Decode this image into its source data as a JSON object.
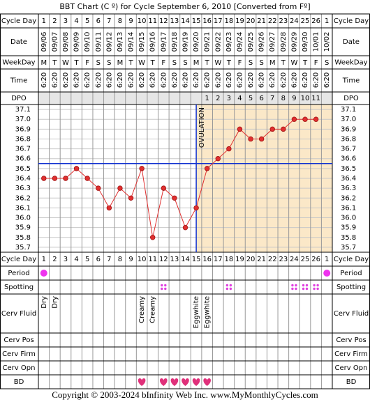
{
  "title": "BBT Chart (C º) for Cycle September 6, 2010  [Converted from Fº]",
  "row_labels": [
    "Cycle Day",
    "Date",
    "WeekDay",
    "Time",
    "DPO",
    "Cycle Day",
    "Period",
    "Spotting",
    "Cerv Fluid",
    "Cerv Pos",
    "Cerv Firm",
    "Cerv Opn",
    "BD"
  ],
  "cycle_days": [
    1,
    2,
    3,
    4,
    5,
    6,
    7,
    8,
    9,
    10,
    11,
    12,
    13,
    14,
    15,
    16,
    17,
    18,
    19,
    20,
    21,
    22,
    23,
    24,
    25,
    26,
    1
  ],
  "weekdays": [
    "M",
    "T",
    "W",
    "T",
    "F",
    "S",
    "S",
    "M",
    "T",
    "W",
    "T",
    "F",
    "S",
    "S",
    "M",
    "T",
    "W",
    "T",
    "F",
    "S",
    "S",
    "M",
    "T",
    "W",
    "T",
    "F",
    "S"
  ],
  "times": [
    "6:20",
    "6:20",
    "6:20",
    "6:20",
    "6:20",
    "6:20",
    "6:20",
    "6:20",
    "6:20",
    "6:20",
    "6:20",
    "6:20",
    "6:20",
    "6:20",
    "6:20",
    "6:20",
    "6:20",
    "6:20",
    "6:20",
    "6:20",
    "6:20",
    "6:20",
    "6:20",
    "6:20",
    "6:20",
    "6:20",
    "6:20"
  ],
  "dpo": [
    null,
    null,
    null,
    null,
    null,
    null,
    null,
    null,
    null,
    null,
    null,
    null,
    null,
    null,
    null,
    1,
    2,
    3,
    4,
    5,
    6,
    7,
    8,
    9,
    10,
    11,
    null
  ],
  "chart_data": {
    "type": "line",
    "x": [
      "09/06",
      "09/07",
      "09/08",
      "09/09",
      "09/10",
      "09/11",
      "09/12",
      "09/13",
      "09/14",
      "09/15",
      "09/16",
      "09/17",
      "09/18",
      "09/19",
      "09/20",
      "09/21",
      "09/22",
      "09/23",
      "09/24",
      "09/25",
      "09/26",
      "09/27",
      "09/28",
      "09/29",
      "09/30",
      "10/01",
      "10/02"
    ],
    "values": [
      36.4,
      36.4,
      36.4,
      36.5,
      36.4,
      36.3,
      36.1,
      36.3,
      36.2,
      36.5,
      35.8,
      36.3,
      36.2,
      35.9,
      36.1,
      36.5,
      36.6,
      36.7,
      36.9,
      36.8,
      36.8,
      36.9,
      36.9,
      37.0,
      37.0,
      37.0,
      null
    ],
    "color": "#e03030",
    "ylim": [
      35.65,
      37.15
    ],
    "yticks": [
      37.1,
      {
        "value": 37.0,
        "label": "37.0"
      },
      36.9,
      36.8,
      36.7,
      36.6,
      36.5,
      36.4,
      36.3,
      36.2,
      36.1,
      {
        "value": 36.0,
        "label": "36.0"
      },
      35.9,
      35.8,
      35.7
    ],
    "grid": true,
    "coverline": 36.55,
    "ovulation_day": 15,
    "ovulation_label": "OVULATION"
  },
  "period": [
    true,
    false,
    false,
    false,
    false,
    false,
    false,
    false,
    false,
    false,
    false,
    false,
    false,
    false,
    false,
    false,
    false,
    false,
    false,
    false,
    false,
    false,
    false,
    false,
    false,
    false,
    true
  ],
  "spotting": [
    false,
    false,
    false,
    false,
    false,
    false,
    false,
    false,
    false,
    false,
    false,
    true,
    false,
    false,
    false,
    false,
    false,
    true,
    false,
    false,
    false,
    false,
    false,
    true,
    true,
    true,
    false
  ],
  "cerv_fluid": [
    "Dry",
    "Dry",
    null,
    null,
    null,
    null,
    null,
    null,
    null,
    "Creamy",
    "Creamy",
    null,
    null,
    null,
    "Eggwhite",
    "Eggwhite",
    null,
    null,
    null,
    null,
    null,
    null,
    null,
    null,
    null,
    null,
    null
  ],
  "bd": [
    false,
    false,
    false,
    false,
    false,
    false,
    false,
    false,
    false,
    true,
    false,
    true,
    true,
    true,
    true,
    true,
    false,
    false,
    false,
    false,
    false,
    false,
    false,
    false,
    false,
    false,
    false
  ],
  "footer": "Copyright © 2003-2024 bInfinity Web Inc.    www.MyMonthlyCycles.com"
}
